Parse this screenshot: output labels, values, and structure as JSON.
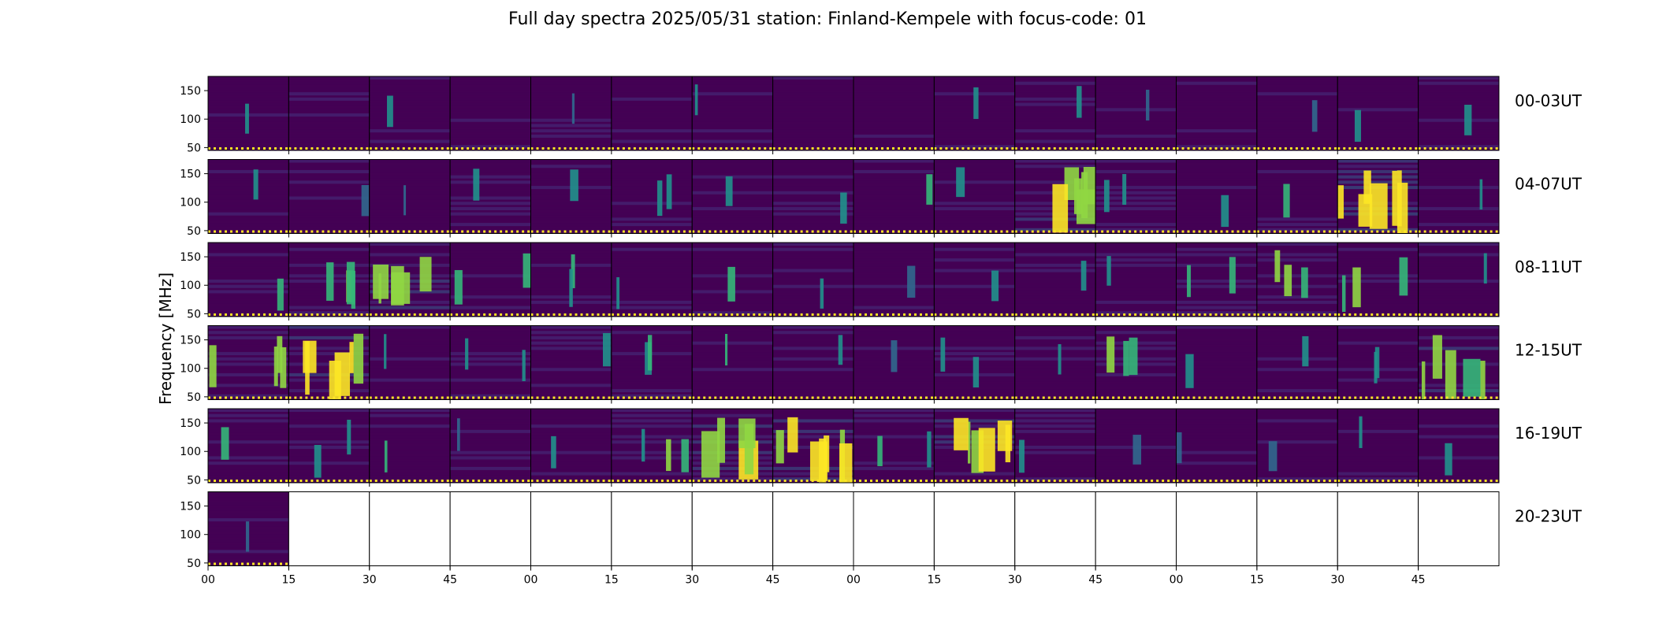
{
  "chart_data": {
    "type": "heatmap",
    "title": "Full day spectra 2025/05/31 station: Finland-Kempele with focus-code: 01",
    "ylabel": "Frequency [MHz]",
    "xlabel": "",
    "y_ticks": [
      50,
      100,
      150
    ],
    "ylim": [
      45,
      175
    ],
    "x_ticks": [
      "00",
      "15",
      "30",
      "45",
      "00",
      "15",
      "30",
      "45",
      "00",
      "15",
      "30",
      "45",
      "00",
      "15",
      "30",
      "45"
    ],
    "panels_per_row": 16,
    "panel_minutes": 15,
    "colormap": "viridis",
    "rows": [
      {
        "label": "00-03UT",
        "panels": [
          0.05,
          0.04,
          0.05,
          0.04,
          0.05,
          0.04,
          0.05,
          0.03,
          0.04,
          0.05,
          0.05,
          0.05,
          0.04,
          0.05,
          0.05,
          0.08
        ]
      },
      {
        "label": "04-07UT",
        "panels": [
          0.08,
          0.06,
          0.1,
          0.08,
          0.12,
          0.15,
          0.1,
          0.08,
          0.08,
          0.08,
          0.55,
          0.15,
          0.12,
          0.12,
          0.7,
          0.12
        ]
      },
      {
        "label": "08-11UT",
        "panels": [
          0.08,
          0.35,
          0.45,
          0.15,
          0.2,
          0.06,
          0.12,
          0.05,
          0.06,
          0.06,
          0.06,
          0.05,
          0.2,
          0.3,
          0.3,
          0.08
        ]
      },
      {
        "label": "12-15UT",
        "panels": [
          0.35,
          0.55,
          0.12,
          0.2,
          0.1,
          0.2,
          0.1,
          0.08,
          0.06,
          0.15,
          0.06,
          0.25,
          0.1,
          0.1,
          0.15,
          0.45
        ]
      },
      {
        "label": "16-19UT",
        "panels": [
          0.1,
          0.15,
          0.08,
          0.08,
          0.06,
          0.3,
          0.5,
          0.65,
          0.2,
          0.55,
          0.1,
          0.06,
          0.06,
          0.06,
          0.08,
          0.08
        ]
      },
      {
        "label": "20-23UT",
        "panels": [
          0.08
        ]
      }
    ],
    "colors": {
      "background": "#440154",
      "mid": "#31688e",
      "high": "#35b779",
      "peak": "#fde725",
      "marker": "#fde725"
    }
  }
}
